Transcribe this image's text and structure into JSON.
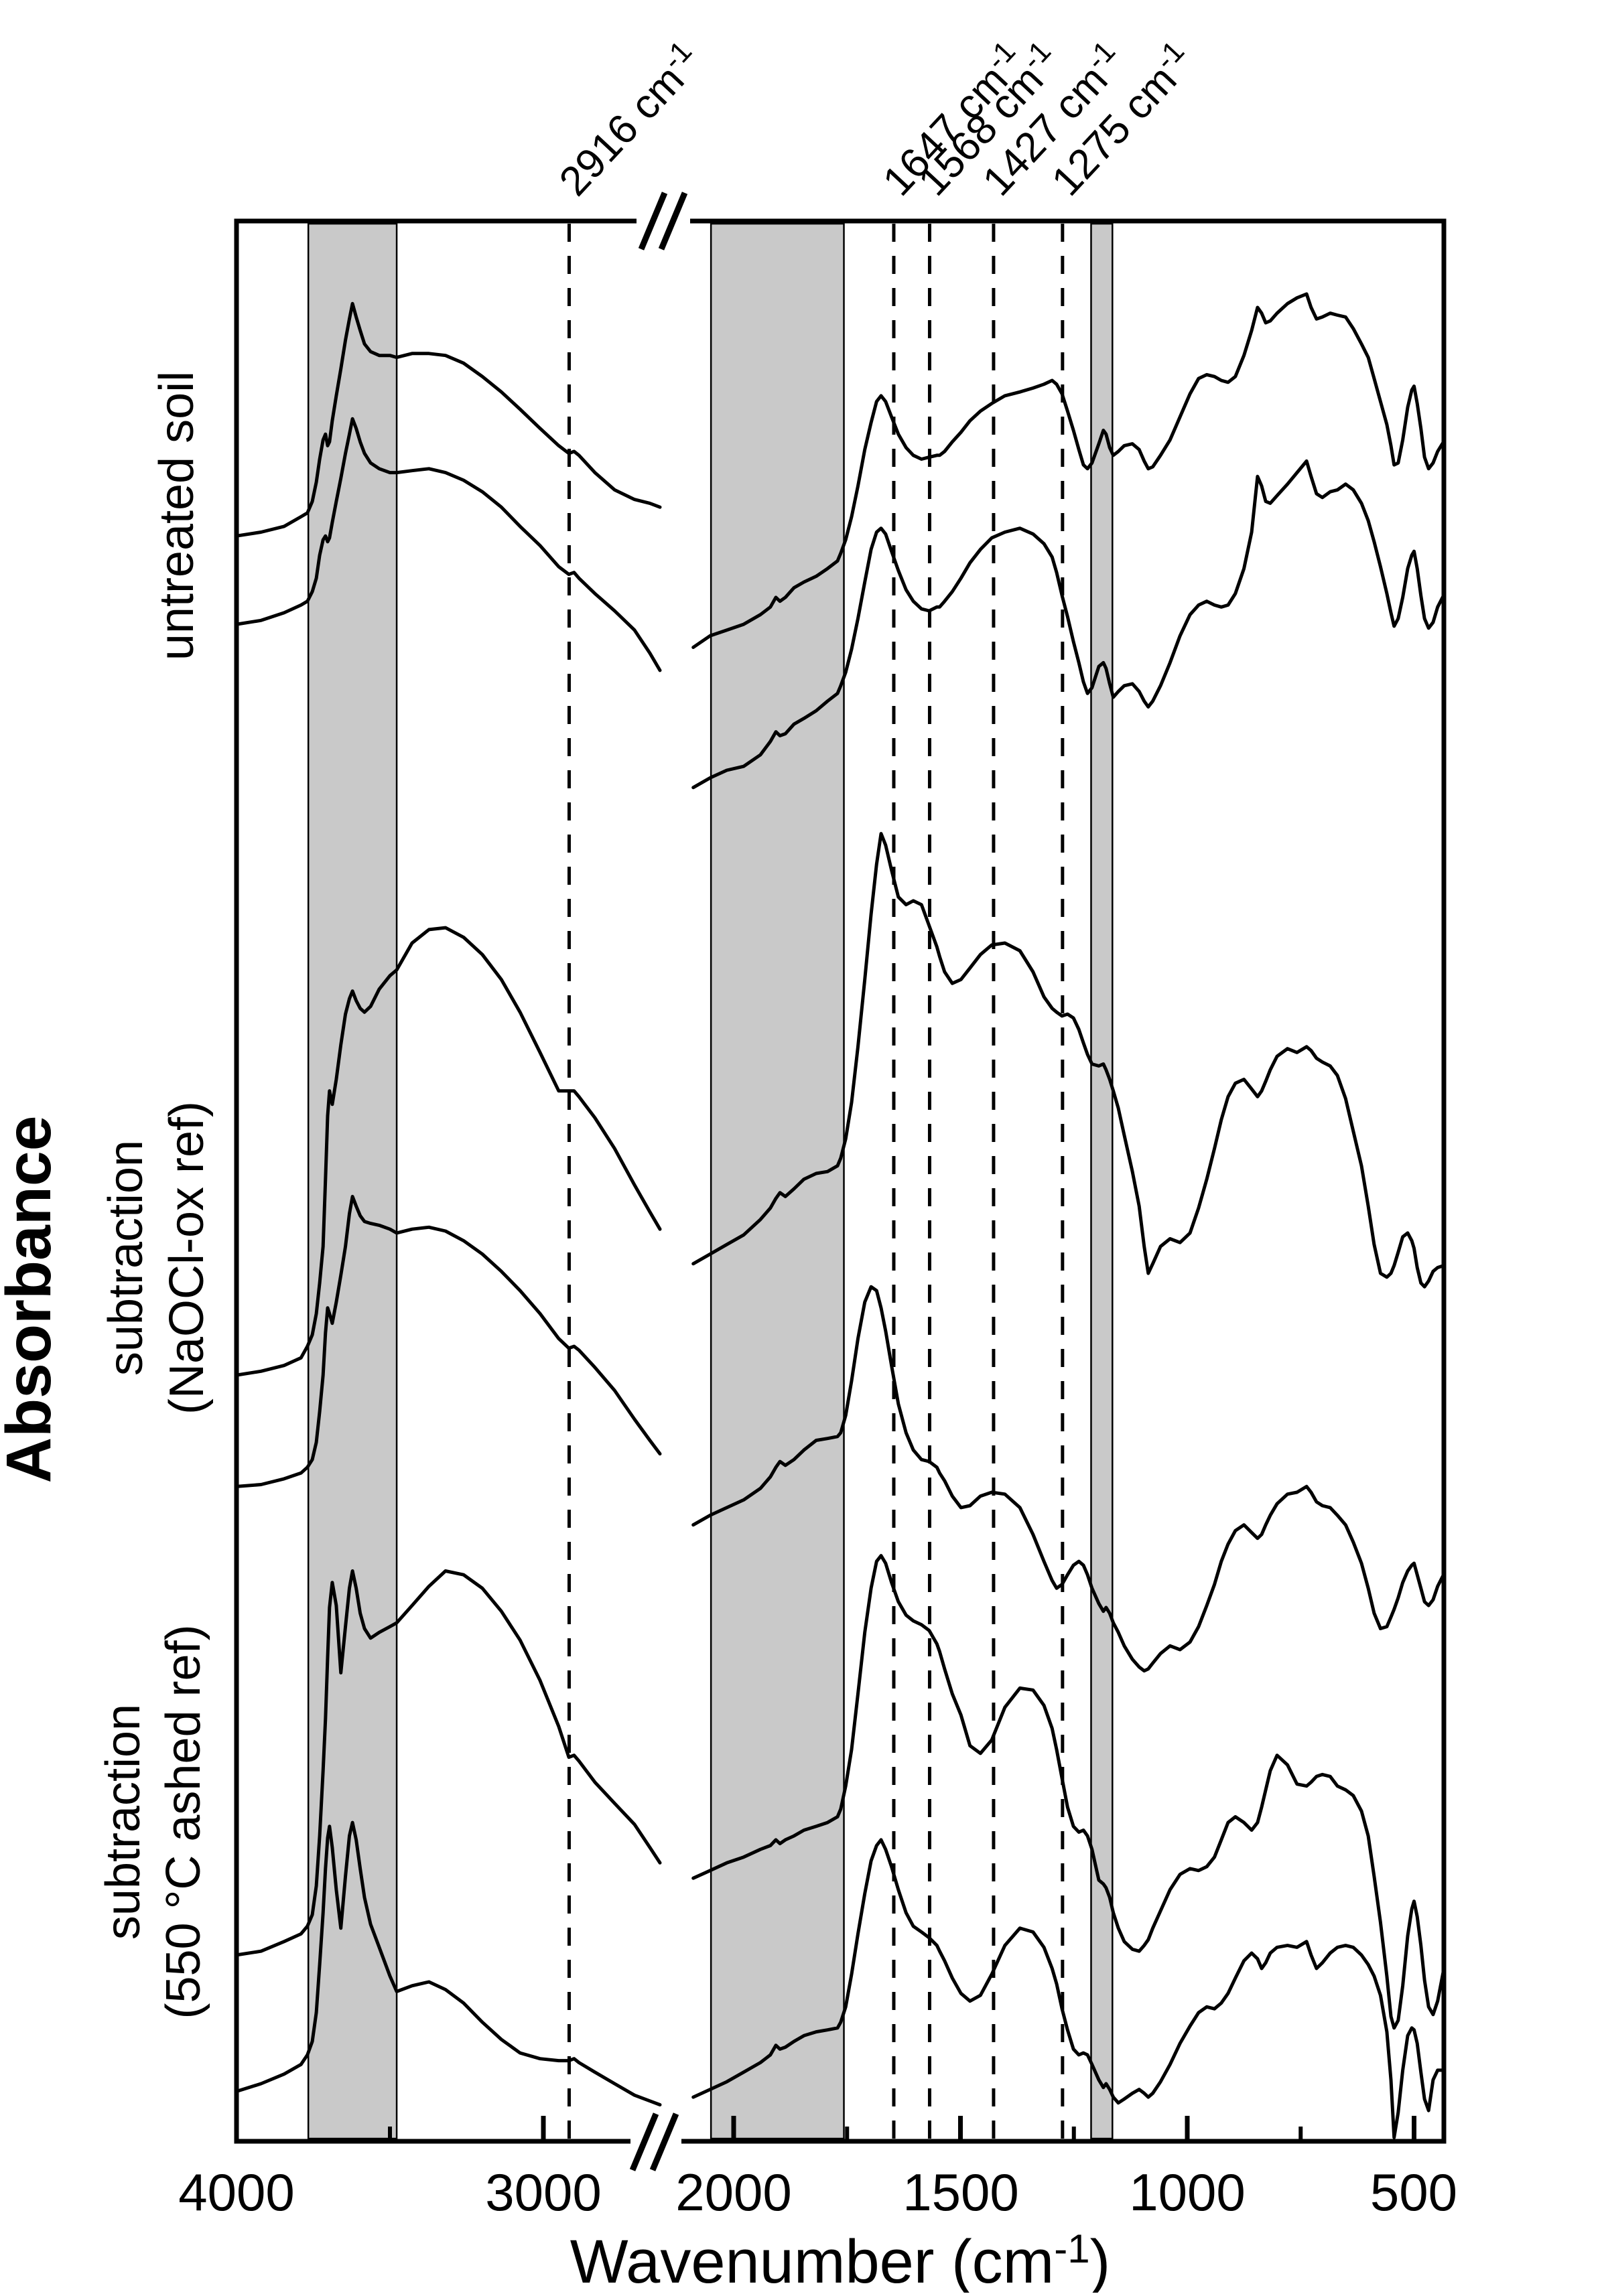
{
  "figure": {
    "kind": "FTIR absorbance spectra figure",
    "colors": {
      "background": "#ffffff",
      "line": "#000000",
      "masked_band_fill": "#c9c9c9",
      "masked_band_border": "#000000"
    }
  },
  "chart_data": {
    "type": "line",
    "title": "",
    "ylabel": "Absorbance",
    "xlabel": {
      "main": "Wavenumber (cm",
      "sup": "-1",
      "tail": ")"
    },
    "x_axis": {
      "direction": "decreasing",
      "units": "cm-1",
      "major_ticks": [
        4000,
        3000,
        2000,
        1500,
        1000,
        500
      ],
      "tick_labels": [
        "4000",
        "3000",
        "2000",
        "1500",
        "1000",
        "500"
      ],
      "minor_ticks": [
        3500,
        1750,
        1250,
        750
      ],
      "axis_break_between": [
        2600,
        2100
      ],
      "range_left_segment": [
        4000,
        2620
      ],
      "range_right_segment": [
        2089,
        435
      ]
    },
    "y_axis": {
      "label": "Absorbance",
      "scale": "arbitrary units, no ticks"
    },
    "grid": "off",
    "legend": "none",
    "annotations": [
      {
        "wavenumber": 2916,
        "label": "2916 cm",
        "sup": "-1"
      },
      {
        "wavenumber": 1647,
        "label": "1647 cm",
        "sup": "-1"
      },
      {
        "wavenumber": 1568,
        "label": "1568 cm",
        "sup": "-1"
      },
      {
        "wavenumber": 1427,
        "label": "1427 cm",
        "sup": "-1"
      },
      {
        "wavenumber": 1275,
        "label": "1275 cm",
        "sup": "-1"
      }
    ],
    "masked_regions_cm1": [
      [
        3766,
        3478
      ],
      [
        2050,
        1757
      ],
      [
        1212,
        1165
      ]
    ],
    "groups": [
      {
        "line1": "untreated soil",
        "line2": ""
      },
      {
        "line1": "subtraction",
        "line2": "(NaOCl-ox ref)"
      },
      {
        "line1": "subtraction",
        "line2": "(550 °C ashed ref)"
      }
    ],
    "w_left": [
      4000,
      3920,
      3845,
      3790,
      3769,
      3753,
      3740,
      3729,
      3718,
      3710,
      3703,
      3697,
      3688,
      3675,
      3660,
      3645,
      3632,
      3622,
      3610,
      3597,
      3583,
      3563,
      3535,
      3500,
      3478,
      3428,
      3373,
      3319,
      3260,
      3199,
      3137,
      3076,
      3011,
      2950,
      2917,
      2900,
      2884,
      2832,
      2768,
      2703,
      2653,
      2620
    ],
    "w_right": [
      2089,
      2052,
      2015,
      1978,
      1941,
      1919,
      1907,
      1898,
      1886,
      1867,
      1845,
      1818,
      1793,
      1771,
      1764,
      1753,
      1740,
      1726,
      1711,
      1697,
      1685,
      1675,
      1665,
      1652,
      1637,
      1620,
      1604,
      1586,
      1569,
      1552,
      1546,
      1535,
      1518,
      1499,
      1479,
      1456,
      1431,
      1402,
      1369,
      1340,
      1316,
      1298,
      1288,
      1276,
      1264,
      1251,
      1239,
      1229,
      1220,
      1210,
      1195,
      1185,
      1179,
      1171,
      1163,
      1152,
      1139,
      1121,
      1106,
      1095,
      1086,
      1076,
      1059,
      1038,
      1016,
      994,
      975,
      957,
      940,
      925,
      910,
      894,
      875,
      858,
      845,
      836,
      827,
      817,
      802,
      779,
      758,
      737,
      727,
      715,
      702,
      685,
      669,
      651,
      634,
      616,
      601,
      588,
      574,
      560,
      551,
      544,
      535,
      525,
      514,
      505,
      500,
      493,
      485,
      477,
      468,
      458,
      448,
      435
    ],
    "series": [
      {
        "name": "untreated soil 1",
        "group": 0,
        "a_left": [
          0.836,
          0.838,
          0.841,
          0.846,
          0.848,
          0.854,
          0.864,
          0.876,
          0.886,
          0.889,
          0.883,
          0.885,
          0.896,
          0.909,
          0.923,
          0.938,
          0.949,
          0.957,
          0.95,
          0.943,
          0.936,
          0.932,
          0.93,
          0.93,
          0.929,
          0.931,
          0.931,
          0.93,
          0.926,
          0.919,
          0.911,
          0.902,
          0.892,
          0.883,
          0.879,
          0.88,
          0.878,
          0.869,
          0.86,
          0.855,
          0.853,
          0.851
        ],
        "a_right": [
          0.778,
          0.784,
          0.787,
          0.79,
          0.795,
          0.799,
          0.804,
          0.802,
          0.804,
          0.809,
          0.812,
          0.815,
          0.819,
          0.823,
          0.827,
          0.834,
          0.846,
          0.862,
          0.881,
          0.895,
          0.906,
          0.909,
          0.906,
          0.898,
          0.889,
          0.882,
          0.878,
          0.876,
          0.877,
          0.878,
          0.878,
          0.88,
          0.885,
          0.89,
          0.896,
          0.901,
          0.905,
          0.909,
          0.911,
          0.913,
          0.915,
          0.917,
          0.915,
          0.91,
          0.901,
          0.891,
          0.881,
          0.873,
          0.871,
          0.874,
          0.884,
          0.891,
          0.889,
          0.882,
          0.878,
          0.88,
          0.883,
          0.884,
          0.881,
          0.875,
          0.871,
          0.872,
          0.878,
          0.886,
          0.898,
          0.91,
          0.918,
          0.92,
          0.919,
          0.917,
          0.916,
          0.919,
          0.93,
          0.943,
          0.955,
          0.952,
          0.947,
          0.948,
          0.952,
          0.957,
          0.96,
          0.962,
          0.955,
          0.949,
          0.95,
          0.952,
          0.951,
          0.95,
          0.944,
          0.936,
          0.929,
          0.918,
          0.906,
          0.894,
          0.883,
          0.873,
          0.874,
          0.886,
          0.903,
          0.912,
          0.914,
          0.905,
          0.892,
          0.877,
          0.871,
          0.874,
          0.88,
          0.885
        ]
      },
      {
        "name": "untreated soil 2",
        "group": 0,
        "a_left": [
          0.79,
          0.792,
          0.796,
          0.8,
          0.802,
          0.807,
          0.814,
          0.826,
          0.834,
          0.836,
          0.833,
          0.835,
          0.843,
          0.854,
          0.866,
          0.879,
          0.889,
          0.897,
          0.892,
          0.885,
          0.879,
          0.874,
          0.871,
          0.869,
          0.869,
          0.87,
          0.871,
          0.869,
          0.865,
          0.859,
          0.851,
          0.841,
          0.831,
          0.82,
          0.816,
          0.817,
          0.814,
          0.806,
          0.797,
          0.787,
          0.775,
          0.766
        ],
        "a_right": [
          0.705,
          0.71,
          0.714,
          0.716,
          0.722,
          0.729,
          0.734,
          0.732,
          0.733,
          0.738,
          0.741,
          0.745,
          0.75,
          0.754,
          0.758,
          0.765,
          0.777,
          0.793,
          0.812,
          0.829,
          0.838,
          0.84,
          0.837,
          0.828,
          0.818,
          0.808,
          0.802,
          0.798,
          0.797,
          0.799,
          0.799,
          0.802,
          0.807,
          0.814,
          0.822,
          0.829,
          0.835,
          0.838,
          0.84,
          0.837,
          0.832,
          0.825,
          0.817,
          0.805,
          0.794,
          0.781,
          0.77,
          0.76,
          0.754,
          0.757,
          0.768,
          0.77,
          0.767,
          0.759,
          0.752,
          0.755,
          0.758,
          0.759,
          0.755,
          0.75,
          0.747,
          0.75,
          0.758,
          0.77,
          0.784,
          0.795,
          0.8,
          0.802,
          0.8,
          0.799,
          0.8,
          0.806,
          0.819,
          0.838,
          0.867,
          0.862,
          0.854,
          0.853,
          0.857,
          0.863,
          0.869,
          0.875,
          0.867,
          0.858,
          0.856,
          0.859,
          0.86,
          0.863,
          0.86,
          0.853,
          0.844,
          0.833,
          0.82,
          0.806,
          0.796,
          0.789,
          0.793,
          0.804,
          0.819,
          0.826,
          0.828,
          0.819,
          0.805,
          0.793,
          0.788,
          0.791,
          0.799,
          0.805
        ]
      },
      {
        "name": "subtraction (NaOCl-ox ref) 1",
        "group": 1,
        "a_left": [
          0.399,
          0.401,
          0.404,
          0.408,
          0.414,
          0.42,
          0.431,
          0.447,
          0.466,
          0.501,
          0.534,
          0.547,
          0.54,
          0.553,
          0.571,
          0.587,
          0.595,
          0.599,
          0.594,
          0.59,
          0.588,
          0.591,
          0.6,
          0.607,
          0.61,
          0.624,
          0.631,
          0.632,
          0.627,
          0.618,
          0.605,
          0.588,
          0.567,
          0.547,
          0.547,
          0.547,
          0.544,
          0.533,
          0.517,
          0.498,
          0.484,
          0.475
        ],
        "a_right": [
          0.457,
          0.462,
          0.467,
          0.472,
          0.48,
          0.486,
          0.491,
          0.494,
          0.492,
          0.496,
          0.501,
          0.504,
          0.505,
          0.508,
          0.512,
          0.522,
          0.541,
          0.57,
          0.605,
          0.639,
          0.665,
          0.681,
          0.675,
          0.662,
          0.648,
          0.644,
          0.646,
          0.644,
          0.633,
          0.622,
          0.617,
          0.609,
          0.603,
          0.605,
          0.611,
          0.618,
          0.623,
          0.624,
          0.62,
          0.609,
          0.596,
          0.59,
          0.588,
          0.586,
          0.587,
          0.585,
          0.579,
          0.572,
          0.566,
          0.561,
          0.56,
          0.561,
          0.558,
          0.553,
          0.547,
          0.538,
          0.524,
          0.505,
          0.487,
          0.466,
          0.452,
          0.457,
          0.466,
          0.47,
          0.468,
          0.473,
          0.486,
          0.501,
          0.517,
          0.532,
          0.544,
          0.551,
          0.553,
          0.548,
          0.544,
          0.547,
          0.552,
          0.558,
          0.565,
          0.569,
          0.567,
          0.57,
          0.568,
          0.564,
          0.562,
          0.56,
          0.555,
          0.543,
          0.526,
          0.508,
          0.487,
          0.467,
          0.452,
          0.45,
          0.452,
          0.456,
          0.463,
          0.471,
          0.473,
          0.469,
          0.465,
          0.455,
          0.447,
          0.445,
          0.448,
          0.453,
          0.455,
          0.456
        ]
      },
      {
        "name": "subtraction (NaOCl-ox ref) 2",
        "group": 1,
        "a_left": [
          0.341,
          0.342,
          0.345,
          0.348,
          0.351,
          0.355,
          0.364,
          0.38,
          0.399,
          0.421,
          0.434,
          0.431,
          0.426,
          0.437,
          0.451,
          0.466,
          0.483,
          0.492,
          0.487,
          0.482,
          0.479,
          0.478,
          0.477,
          0.475,
          0.473,
          0.475,
          0.476,
          0.474,
          0.469,
          0.462,
          0.453,
          0.443,
          0.431,
          0.418,
          0.413,
          0.414,
          0.412,
          0.403,
          0.391,
          0.376,
          0.365,
          0.358
        ],
        "a_right": [
          0.321,
          0.326,
          0.33,
          0.334,
          0.34,
          0.346,
          0.351,
          0.354,
          0.352,
          0.355,
          0.36,
          0.365,
          0.366,
          0.367,
          0.369,
          0.378,
          0.396,
          0.418,
          0.437,
          0.445,
          0.443,
          0.434,
          0.422,
          0.404,
          0.384,
          0.369,
          0.36,
          0.355,
          0.354,
          0.351,
          0.348,
          0.344,
          0.336,
          0.33,
          0.331,
          0.336,
          0.338,
          0.337,
          0.33,
          0.316,
          0.302,
          0.292,
          0.288,
          0.29,
          0.295,
          0.3,
          0.302,
          0.3,
          0.295,
          0.288,
          0.28,
          0.276,
          0.278,
          0.275,
          0.27,
          0.265,
          0.258,
          0.251,
          0.247,
          0.245,
          0.246,
          0.249,
          0.254,
          0.258,
          0.256,
          0.26,
          0.268,
          0.279,
          0.29,
          0.302,
          0.311,
          0.318,
          0.321,
          0.317,
          0.314,
          0.316,
          0.321,
          0.326,
          0.332,
          0.337,
          0.338,
          0.341,
          0.338,
          0.333,
          0.331,
          0.33,
          0.326,
          0.321,
          0.312,
          0.301,
          0.288,
          0.275,
          0.267,
          0.268,
          0.273,
          0.277,
          0.283,
          0.291,
          0.297,
          0.3,
          0.301,
          0.295,
          0.288,
          0.281,
          0.279,
          0.282,
          0.289,
          0.295
        ]
      },
      {
        "name": "subtraction (550 C ashed ref) 1",
        "group": 2,
        "a_left": [
          0.097,
          0.099,
          0.104,
          0.108,
          0.112,
          0.118,
          0.133,
          0.159,
          0.193,
          0.22,
          0.252,
          0.278,
          0.291,
          0.279,
          0.244,
          0.268,
          0.288,
          0.297,
          0.288,
          0.275,
          0.267,
          0.262,
          0.265,
          0.268,
          0.27,
          0.279,
          0.289,
          0.297,
          0.295,
          0.288,
          0.276,
          0.261,
          0.24,
          0.216,
          0.2,
          0.201,
          0.198,
          0.187,
          0.176,
          0.165,
          0.153,
          0.145
        ],
        "a_right": [
          0.137,
          0.141,
          0.145,
          0.148,
          0.152,
          0.154,
          0.157,
          0.155,
          0.157,
          0.159,
          0.162,
          0.164,
          0.166,
          0.169,
          0.173,
          0.185,
          0.204,
          0.233,
          0.265,
          0.288,
          0.302,
          0.305,
          0.301,
          0.291,
          0.281,
          0.274,
          0.271,
          0.269,
          0.266,
          0.259,
          0.255,
          0.246,
          0.233,
          0.222,
          0.206,
          0.202,
          0.209,
          0.226,
          0.236,
          0.235,
          0.227,
          0.215,
          0.204,
          0.189,
          0.174,
          0.164,
          0.161,
          0.162,
          0.159,
          0.152,
          0.136,
          0.134,
          0.132,
          0.127,
          0.119,
          0.111,
          0.104,
          0.1,
          0.099,
          0.102,
          0.105,
          0.111,
          0.12,
          0.131,
          0.139,
          0.142,
          0.141,
          0.143,
          0.148,
          0.157,
          0.166,
          0.169,
          0.166,
          0.162,
          0.166,
          0.174,
          0.183,
          0.193,
          0.201,
          0.196,
          0.186,
          0.185,
          0.187,
          0.19,
          0.191,
          0.19,
          0.185,
          0.183,
          0.18,
          0.172,
          0.159,
          0.138,
          0.114,
          0.086,
          0.065,
          0.059,
          0.063,
          0.081,
          0.107,
          0.121,
          0.125,
          0.117,
          0.102,
          0.084,
          0.07,
          0.066,
          0.073,
          0.089
        ]
      },
      {
        "name": "subtraction (550 C ashed ref) 2",
        "group": 2,
        "a_left": [
          0.026,
          0.03,
          0.035,
          0.04,
          0.045,
          0.052,
          0.067,
          0.092,
          0.119,
          0.142,
          0.158,
          0.164,
          0.153,
          0.131,
          0.111,
          0.138,
          0.159,
          0.166,
          0.157,
          0.142,
          0.127,
          0.113,
          0.101,
          0.086,
          0.078,
          0.081,
          0.083,
          0.079,
          0.072,
          0.062,
          0.053,
          0.046,
          0.043,
          0.042,
          0.042,
          0.043,
          0.041,
          0.036,
          0.03,
          0.024,
          0.021,
          0.019
        ],
        "a_right": [
          0.023,
          0.027,
          0.031,
          0.036,
          0.041,
          0.045,
          0.05,
          0.048,
          0.049,
          0.052,
          0.055,
          0.057,
          0.058,
          0.059,
          0.062,
          0.07,
          0.087,
          0.108,
          0.129,
          0.146,
          0.154,
          0.157,
          0.152,
          0.143,
          0.131,
          0.119,
          0.112,
          0.109,
          0.106,
          0.102,
          0.099,
          0.094,
          0.085,
          0.077,
          0.073,
          0.076,
          0.087,
          0.102,
          0.111,
          0.109,
          0.101,
          0.09,
          0.082,
          0.069,
          0.058,
          0.048,
          0.045,
          0.046,
          0.045,
          0.04,
          0.032,
          0.028,
          0.03,
          0.027,
          0.023,
          0.02,
          0.022,
          0.025,
          0.027,
          0.025,
          0.023,
          0.025,
          0.031,
          0.04,
          0.051,
          0.06,
          0.067,
          0.07,
          0.069,
          0.072,
          0.077,
          0.085,
          0.094,
          0.098,
          0.095,
          0.09,
          0.093,
          0.098,
          0.101,
          0.102,
          0.101,
          0.104,
          0.097,
          0.09,
          0.093,
          0.098,
          0.101,
          0.102,
          0.101,
          0.097,
          0.092,
          0.086,
          0.076,
          0.057,
          0.032,
          0.002,
          0.015,
          0.037,
          0.055,
          0.059,
          0.058,
          0.051,
          0.036,
          0.022,
          0.016,
          0.032,
          0.037,
          0.037
        ]
      }
    ]
  }
}
